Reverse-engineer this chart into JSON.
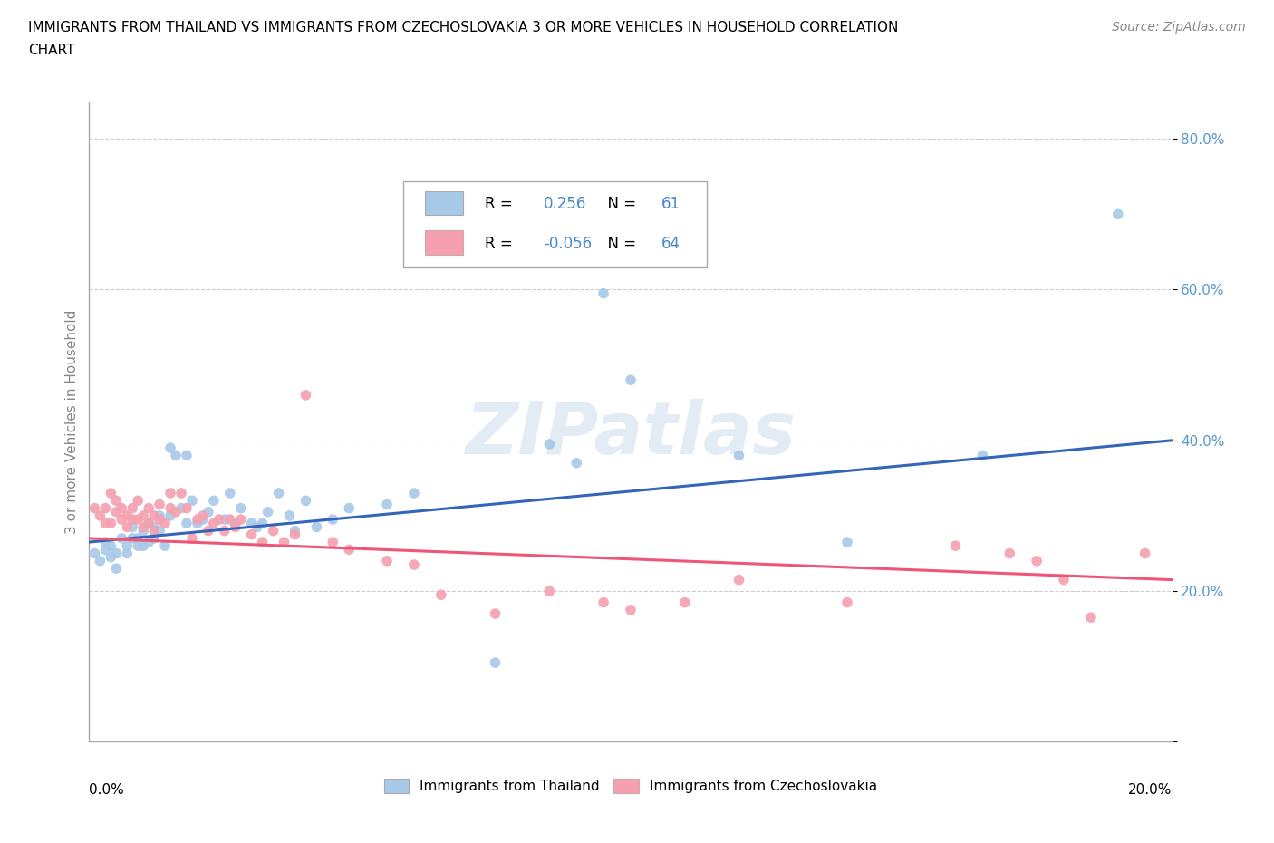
{
  "title_line1": "IMMIGRANTS FROM THAILAND VS IMMIGRANTS FROM CZECHOSLOVAKIA 3 OR MORE VEHICLES IN HOUSEHOLD CORRELATION",
  "title_line2": "CHART",
  "source": "Source: ZipAtlas.com",
  "ylabel": "3 or more Vehicles in Household",
  "xlim": [
    0.0,
    0.2
  ],
  "ylim": [
    0.0,
    0.85
  ],
  "R_thailand": 0.256,
  "N_thailand": 61,
  "R_czech": -0.056,
  "N_czech": 64,
  "color_thailand": "#a8c8e8",
  "color_czech": "#f4a0b0",
  "line_color_thailand": "#3366bb",
  "line_color_czech": "#ee5577",
  "legend_label_thailand": "Immigrants from Thailand",
  "legend_label_czech": "Immigrants from Czechoslovakia",
  "watermark": "ZIPatlas",
  "thailand_x": [
    0.001,
    0.002,
    0.003,
    0.003,
    0.004,
    0.004,
    0.005,
    0.005,
    0.006,
    0.007,
    0.007,
    0.008,
    0.008,
    0.009,
    0.009,
    0.01,
    0.01,
    0.011,
    0.011,
    0.012,
    0.012,
    0.013,
    0.013,
    0.014,
    0.015,
    0.015,
    0.016,
    0.017,
    0.018,
    0.018,
    0.019,
    0.02,
    0.021,
    0.022,
    0.023,
    0.025,
    0.026,
    0.027,
    0.028,
    0.03,
    0.031,
    0.032,
    0.033,
    0.035,
    0.037,
    0.038,
    0.04,
    0.042,
    0.045,
    0.048,
    0.055,
    0.06,
    0.075,
    0.085,
    0.09,
    0.095,
    0.1,
    0.12,
    0.14,
    0.165,
    0.19
  ],
  "thailand_y": [
    0.25,
    0.24,
    0.255,
    0.265,
    0.26,
    0.245,
    0.25,
    0.23,
    0.27,
    0.26,
    0.25,
    0.27,
    0.285,
    0.26,
    0.27,
    0.26,
    0.28,
    0.265,
    0.29,
    0.27,
    0.285,
    0.3,
    0.28,
    0.26,
    0.39,
    0.3,
    0.38,
    0.31,
    0.29,
    0.38,
    0.32,
    0.29,
    0.295,
    0.305,
    0.32,
    0.295,
    0.33,
    0.29,
    0.31,
    0.29,
    0.285,
    0.29,
    0.305,
    0.33,
    0.3,
    0.28,
    0.32,
    0.285,
    0.295,
    0.31,
    0.315,
    0.33,
    0.105,
    0.395,
    0.37,
    0.595,
    0.48,
    0.38,
    0.265,
    0.38,
    0.7
  ],
  "czech_x": [
    0.001,
    0.002,
    0.003,
    0.003,
    0.004,
    0.004,
    0.005,
    0.005,
    0.006,
    0.006,
    0.007,
    0.007,
    0.008,
    0.008,
    0.009,
    0.009,
    0.01,
    0.01,
    0.011,
    0.011,
    0.012,
    0.012,
    0.013,
    0.013,
    0.014,
    0.015,
    0.015,
    0.016,
    0.017,
    0.018,
    0.019,
    0.02,
    0.021,
    0.022,
    0.023,
    0.024,
    0.025,
    0.026,
    0.027,
    0.028,
    0.03,
    0.032,
    0.034,
    0.036,
    0.038,
    0.04,
    0.045,
    0.048,
    0.055,
    0.06,
    0.065,
    0.075,
    0.085,
    0.095,
    0.1,
    0.11,
    0.12,
    0.14,
    0.16,
    0.17,
    0.175,
    0.18,
    0.185,
    0.195
  ],
  "czech_y": [
    0.31,
    0.3,
    0.29,
    0.31,
    0.33,
    0.29,
    0.305,
    0.32,
    0.295,
    0.31,
    0.285,
    0.3,
    0.295,
    0.31,
    0.32,
    0.295,
    0.285,
    0.3,
    0.31,
    0.29,
    0.28,
    0.3,
    0.315,
    0.295,
    0.29,
    0.33,
    0.31,
    0.305,
    0.33,
    0.31,
    0.27,
    0.295,
    0.3,
    0.28,
    0.29,
    0.295,
    0.28,
    0.295,
    0.285,
    0.295,
    0.275,
    0.265,
    0.28,
    0.265,
    0.275,
    0.46,
    0.265,
    0.255,
    0.24,
    0.235,
    0.195,
    0.17,
    0.2,
    0.185,
    0.175,
    0.185,
    0.215,
    0.185,
    0.26,
    0.25,
    0.24,
    0.215,
    0.165,
    0.25
  ]
}
